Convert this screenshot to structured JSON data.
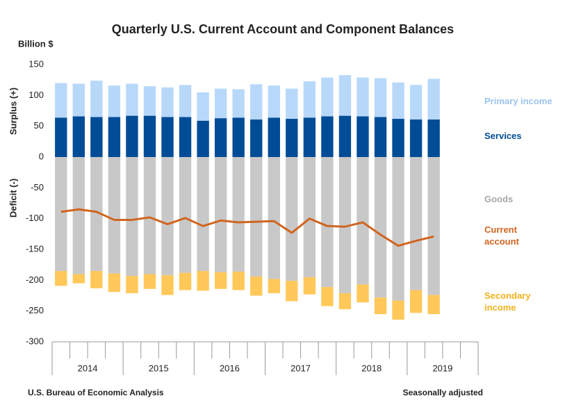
{
  "chart_data": {
    "type": "bar",
    "stacked": true,
    "title": "Quarterly U.S. Current Account and Component Balances",
    "y_unit": "Billion $",
    "y_label_positive": "Surplus (+)",
    "y_label_negative": "Deficit (-)",
    "source": "U.S. Bureau of Economic Analysis",
    "note": "Seasonally adjusted",
    "categories": [
      null,
      null,
      null,
      null,
      null,
      null,
      null,
      null,
      null,
      null,
      null,
      null,
      null,
      null,
      null,
      null,
      null,
      null,
      null,
      null,
      null,
      null,
      null,
      null
    ],
    "groups": [
      "2014",
      "2015",
      "2016",
      "2017",
      "2018",
      "2019"
    ],
    "ylim": [
      -300,
      150
    ],
    "yticks": [
      -300,
      -250,
      -200,
      -150,
      -100,
      -50,
      0,
      50,
      100,
      150
    ],
    "grid": false,
    "series": [
      {
        "name": "Services",
        "color": "#004c97",
        "type": "bar",
        "values": [
          64,
          66,
          65,
          65,
          67,
          67,
          65,
          65,
          59,
          63,
          64,
          61,
          64,
          62,
          64,
          66,
          67,
          66,
          65,
          62,
          61,
          61,
          null,
          null
        ]
      },
      {
        "name": "Primary income",
        "color": "#b8d8fa",
        "type": "bar",
        "values": [
          56,
          53,
          59,
          51,
          52,
          48,
          48,
          52,
          46,
          48,
          46,
          57,
          52,
          49,
          59,
          63,
          66,
          63,
          63,
          59,
          56,
          66,
          null,
          null
        ]
      },
      {
        "name": "Goods",
        "color": "#c8c8c8",
        "type": "bar",
        "values": [
          -185,
          -190,
          -185,
          -189,
          -193,
          -190,
          -192,
          -188,
          -185,
          -187,
          -186,
          -194,
          -198,
          -201,
          -195,
          -211,
          -221,
          -207,
          -228,
          -233,
          -216,
          -224,
          null,
          null
        ]
      },
      {
        "name": "Secondary income",
        "color": "#ffc859",
        "type": "bar",
        "values": [
          -24,
          -15,
          -28,
          -30,
          -28,
          -24,
          -32,
          -28,
          -32,
          -27,
          -30,
          -31,
          -23,
          -33,
          -28,
          -31,
          -26,
          -29,
          -27,
          -31,
          -37,
          -31,
          null,
          null
        ]
      },
      {
        "name": "Current account",
        "color": "#d0651f",
        "type": "line",
        "values": [
          -89,
          -85,
          -89,
          -102,
          -102,
          -98,
          -109,
          -99,
          -112,
          -103,
          -106,
          -105,
          -104,
          -123,
          -100,
          -112,
          -113,
          -106,
          -126,
          -144,
          -136,
          -129,
          null,
          null
        ]
      }
    ]
  }
}
